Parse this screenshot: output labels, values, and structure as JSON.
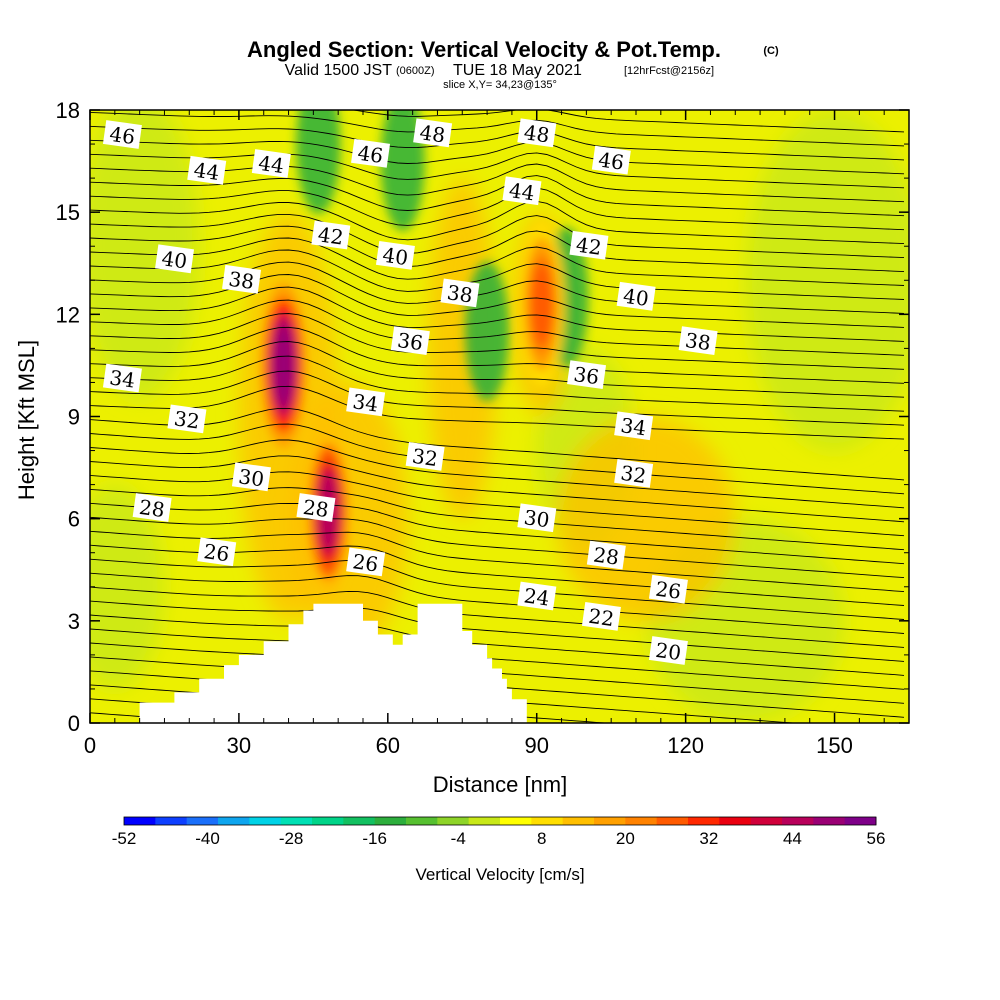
{
  "chart_data": {
    "type": "contour",
    "title": "Angled Section: Vertical Velocity & Pot.Temp.",
    "title_tag": "(C)",
    "subtitle_main": "Valid 1500 JST",
    "subtitle_utc": "(0600Z)",
    "subtitle_date": "TUE 18 May 2021",
    "subtitle_fcst": "[12hrFcst@2156z]",
    "slice_label": "slice X,Y= 34,23@135°",
    "xlabel": "Distance [nm]",
    "ylabel": "Height [Kft MSL]",
    "xlim": [
      0,
      165
    ],
    "ylim": [
      0,
      18
    ],
    "x_ticks": [
      0,
      30,
      60,
      90,
      120,
      150
    ],
    "y_ticks": [
      0,
      3,
      6,
      9,
      12,
      15,
      18
    ],
    "colorbar": {
      "label": "Vertical Velocity [cm/s]",
      "ticks": [
        -52,
        -40,
        -28,
        -16,
        -4,
        8,
        20,
        32,
        44,
        56
      ],
      "colors": [
        "#0000ff",
        "#0d3fff",
        "#1a6ffa",
        "#0ea5ee",
        "#00d2e6",
        "#00e0b4",
        "#00d488",
        "#12c060",
        "#2cae3c",
        "#56c030",
        "#8ed428",
        "#c8e818",
        "#ffff00",
        "#ffde00",
        "#ffbf00",
        "#ffa000",
        "#ff8200",
        "#ff5a00",
        "#ff2800",
        "#ea0010",
        "#d0003a",
        "#b8005a",
        "#9a0074",
        "#7e0088"
      ]
    },
    "isentrope_labels": [
      {
        "value": 46,
        "x": 6.5,
        "y": 17.25
      },
      {
        "value": 44,
        "x": 23.5,
        "y": 16.2
      },
      {
        "value": 44,
        "x": 36.5,
        "y": 16.4
      },
      {
        "value": 46,
        "x": 56.5,
        "y": 16.7
      },
      {
        "value": 48,
        "x": 69,
        "y": 17.3
      },
      {
        "value": 48,
        "x": 90,
        "y": 17.3
      },
      {
        "value": 46,
        "x": 105,
        "y": 16.5
      },
      {
        "value": 44,
        "x": 87,
        "y": 15.6
      },
      {
        "value": 42,
        "x": 48.5,
        "y": 14.3
      },
      {
        "value": 42,
        "x": 100.5,
        "y": 14.0
      },
      {
        "value": 40,
        "x": 17,
        "y": 13.6
      },
      {
        "value": 40,
        "x": 61.5,
        "y": 13.7
      },
      {
        "value": 40,
        "x": 110,
        "y": 12.5
      },
      {
        "value": 38,
        "x": 30.5,
        "y": 13.0
      },
      {
        "value": 38,
        "x": 74.5,
        "y": 12.6
      },
      {
        "value": 38,
        "x": 122.5,
        "y": 11.2
      },
      {
        "value": 36,
        "x": 64.5,
        "y": 11.2
      },
      {
        "value": 36,
        "x": 100,
        "y": 10.2
      },
      {
        "value": 34,
        "x": 6.5,
        "y": 10.1
      },
      {
        "value": 34,
        "x": 55.5,
        "y": 9.4
      },
      {
        "value": 34,
        "x": 109.5,
        "y": 8.7
      },
      {
        "value": 32,
        "x": 19.5,
        "y": 8.9
      },
      {
        "value": 32,
        "x": 67.5,
        "y": 7.8
      },
      {
        "value": 32,
        "x": 109.5,
        "y": 7.3
      },
      {
        "value": 30,
        "x": 32.5,
        "y": 7.2
      },
      {
        "value": 30,
        "x": 90,
        "y": 6.0
      },
      {
        "value": 28,
        "x": 12.5,
        "y": 6.3
      },
      {
        "value": 28,
        "x": 45.5,
        "y": 6.3
      },
      {
        "value": 28,
        "x": 104,
        "y": 4.9
      },
      {
        "value": 26,
        "x": 25.5,
        "y": 5.0
      },
      {
        "value": 26,
        "x": 55.5,
        "y": 4.7
      },
      {
        "value": 26,
        "x": 116.5,
        "y": 3.9
      },
      {
        "value": 24,
        "x": 90,
        "y": 3.7
      },
      {
        "value": 22,
        "x": 103,
        "y": 3.1
      },
      {
        "value": 20,
        "x": 116.5,
        "y": 2.1
      }
    ],
    "updraft_cores": [
      {
        "x": 39,
        "y": 10.5,
        "max_cm_s": 50
      },
      {
        "x": 48,
        "y": 6.2,
        "max_cm_s": 44
      },
      {
        "x": 91,
        "y": 12.3,
        "max_cm_s": 28
      }
    ],
    "downdraft_bands": [
      {
        "x": 46,
        "y": 17,
        "min_cm_s": -16
      },
      {
        "x": 63,
        "y": 16.5,
        "min_cm_s": -16
      },
      {
        "x": 80,
        "y": 11.5,
        "min_cm_s": -16
      },
      {
        "x": 96,
        "y": 12.5,
        "min_cm_s": -14
      }
    ],
    "terrain": [
      [
        10,
        0.6
      ],
      [
        17,
        0.9
      ],
      [
        22,
        1.3
      ],
      [
        27,
        1.7
      ],
      [
        30,
        2.0
      ],
      [
        35,
        2.4
      ],
      [
        40,
        2.9
      ],
      [
        43,
        3.3
      ],
      [
        45,
        3.5
      ],
      [
        50,
        3.5
      ],
      [
        55,
        3.0
      ],
      [
        58,
        2.6
      ],
      [
        61,
        2.3
      ],
      [
        63,
        2.6
      ],
      [
        66,
        3.5
      ],
      [
        70,
        3.5
      ],
      [
        75,
        2.7
      ],
      [
        77,
        2.3
      ],
      [
        80,
        1.9
      ],
      [
        81,
        1.6
      ],
      [
        83,
        1.3
      ],
      [
        84,
        1.0
      ],
      [
        85,
        0.7
      ],
      [
        88,
        0.4
      ]
    ]
  }
}
